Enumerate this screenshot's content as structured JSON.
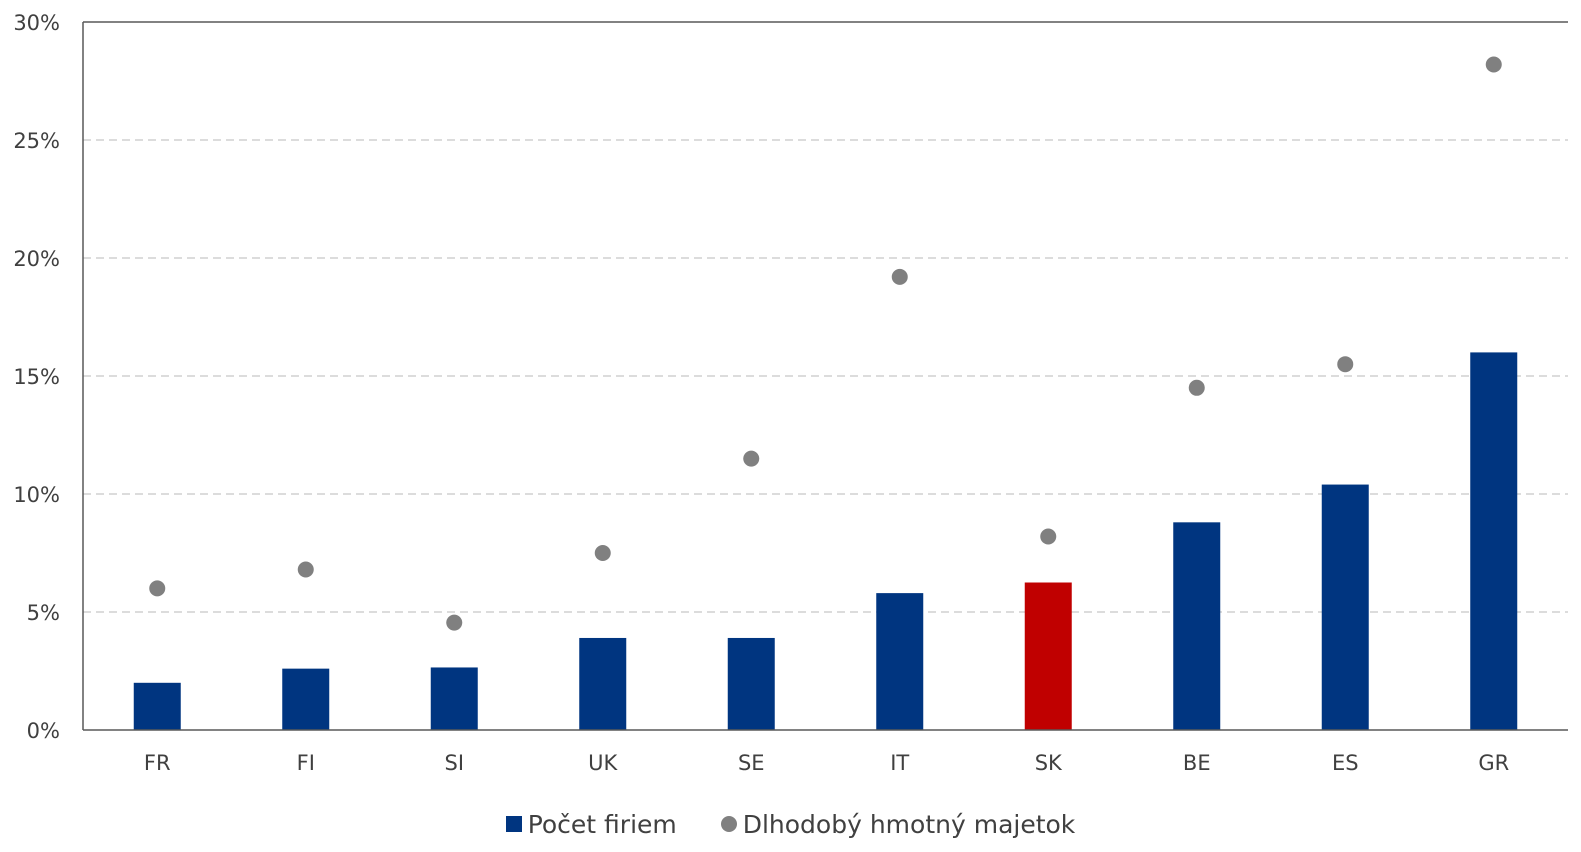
{
  "chart_data": {
    "type": "bar",
    "categories": [
      "FR",
      "FI",
      "SI",
      "UK",
      "SE",
      "IT",
      "SK",
      "BE",
      "ES",
      "GR"
    ],
    "series": [
      {
        "name": "Počet firiem",
        "kind": "bar",
        "values": [
          2.0,
          2.6,
          2.65,
          3.9,
          3.9,
          5.8,
          6.25,
          8.8,
          10.4,
          16.0
        ],
        "color": "#003580",
        "highlight": {
          "SK": "#c00000"
        }
      },
      {
        "name": "Dlhodobý hmotný majetok",
        "kind": "scatter",
        "values": [
          6.0,
          6.8,
          4.55,
          7.5,
          11.5,
          19.2,
          8.2,
          14.5,
          15.5,
          28.2
        ],
        "color": "#808080"
      }
    ],
    "y_ticks": [
      "0%",
      "5%",
      "10%",
      "15%",
      "20%",
      "25%",
      "30%"
    ],
    "ylim": [
      0,
      30
    ],
    "grid": true,
    "legend_position": "bottom"
  }
}
